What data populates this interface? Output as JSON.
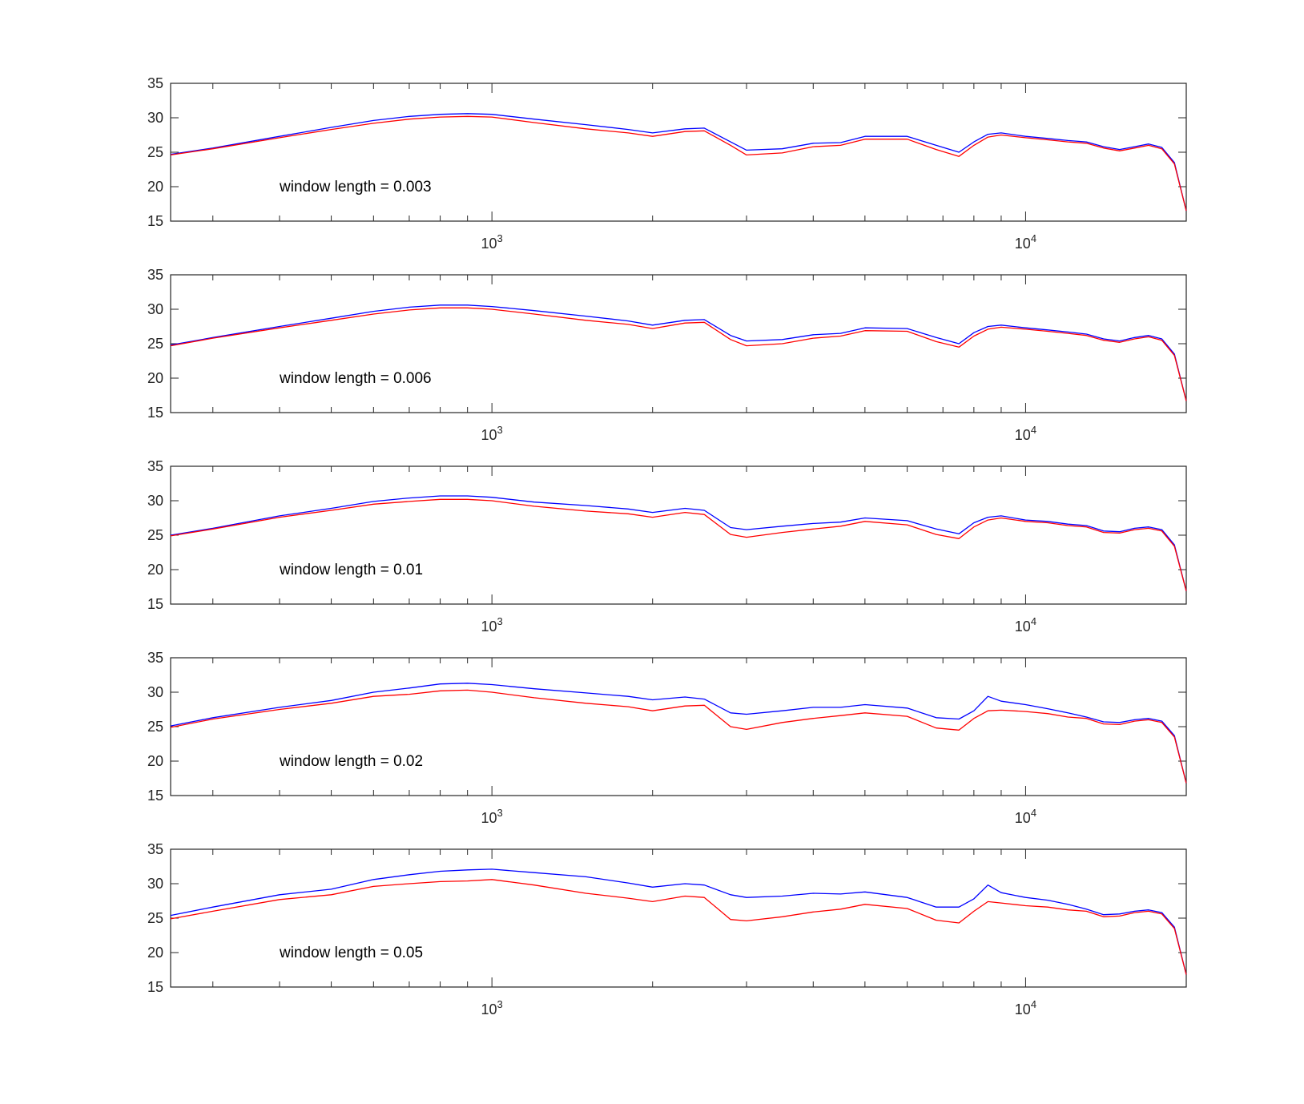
{
  "chart_data": [
    {
      "type": "line",
      "annotation": "window length = 0.003",
      "xscale": "log",
      "xlim": [
        250,
        20000
      ],
      "ylim": [
        15,
        35
      ],
      "yticks": [
        15,
        20,
        25,
        30,
        35
      ],
      "xtick_labels": [
        {
          "base": "10",
          "exp": "3"
        },
        {
          "base": "10",
          "exp": "4"
        }
      ],
      "grid": false,
      "legend": "none",
      "series": [
        {
          "color": "#0000ff",
          "x": [
            250,
            300,
            400,
            500,
            600,
            700,
            800,
            900,
            1000,
            1200,
            1500,
            1800,
            2000,
            2300,
            2500,
            2800,
            3000,
            3500,
            4000,
            4500,
            5000,
            6000,
            6800,
            7500,
            8000,
            8500,
            9000,
            10000,
            11000,
            12000,
            13000,
            14000,
            15000,
            16000,
            17000,
            18000,
            19000,
            20000
          ],
          "y": [
            24.7,
            25.6,
            27.3,
            28.6,
            29.6,
            30.2,
            30.5,
            30.6,
            30.5,
            29.8,
            29.0,
            28.3,
            27.8,
            28.4,
            28.5,
            26.5,
            25.3,
            25.5,
            26.3,
            26.4,
            27.3,
            27.3,
            26.0,
            25.0,
            26.5,
            27.6,
            27.8,
            27.3,
            27.0,
            26.7,
            26.5,
            25.8,
            25.4,
            25.8,
            26.2,
            25.7,
            23.5,
            16.5
          ]
        },
        {
          "color": "#ff0000",
          "x": [
            250,
            300,
            400,
            500,
            600,
            700,
            800,
            900,
            1000,
            1200,
            1500,
            1800,
            2000,
            2300,
            2500,
            2800,
            3000,
            3500,
            4000,
            4500,
            5000,
            6000,
            6800,
            7500,
            8000,
            8500,
            9000,
            10000,
            11000,
            12000,
            13000,
            14000,
            15000,
            16000,
            17000,
            18000,
            19000,
            20000
          ],
          "y": [
            24.6,
            25.5,
            27.1,
            28.3,
            29.2,
            29.8,
            30.1,
            30.2,
            30.1,
            29.3,
            28.4,
            27.8,
            27.3,
            28.0,
            28.1,
            26.0,
            24.6,
            24.9,
            25.8,
            26.0,
            26.9,
            26.9,
            25.4,
            24.4,
            26.0,
            27.2,
            27.5,
            27.1,
            26.8,
            26.5,
            26.3,
            25.6,
            25.2,
            25.6,
            26.0,
            25.5,
            23.3,
            16.5
          ]
        }
      ]
    },
    {
      "type": "line",
      "annotation": "window length = 0.006",
      "xscale": "log",
      "xlim": [
        250,
        20000
      ],
      "ylim": [
        15,
        35
      ],
      "yticks": [
        15,
        20,
        25,
        30,
        35
      ],
      "xtick_labels": [
        {
          "base": "10",
          "exp": "3"
        },
        {
          "base": "10",
          "exp": "4"
        }
      ],
      "grid": false,
      "legend": "none",
      "series": [
        {
          "color": "#0000ff",
          "x": [
            250,
            300,
            400,
            500,
            600,
            700,
            800,
            900,
            1000,
            1200,
            1500,
            1800,
            2000,
            2300,
            2500,
            2800,
            3000,
            3500,
            4000,
            4500,
            5000,
            6000,
            6800,
            7500,
            8000,
            8500,
            9000,
            10000,
            11000,
            12000,
            13000,
            14000,
            15000,
            16000,
            17000,
            18000,
            19000,
            20000
          ],
          "y": [
            24.8,
            25.9,
            27.5,
            28.7,
            29.7,
            30.3,
            30.6,
            30.6,
            30.4,
            29.8,
            29.0,
            28.3,
            27.7,
            28.4,
            28.5,
            26.2,
            25.4,
            25.6,
            26.3,
            26.5,
            27.3,
            27.2,
            25.9,
            25.0,
            26.6,
            27.5,
            27.7,
            27.3,
            27.0,
            26.7,
            26.4,
            25.7,
            25.4,
            25.9,
            26.2,
            25.7,
            23.5,
            16.7
          ]
        },
        {
          "color": "#ff0000",
          "x": [
            250,
            300,
            400,
            500,
            600,
            700,
            800,
            900,
            1000,
            1200,
            1500,
            1800,
            2000,
            2300,
            2500,
            2800,
            3000,
            3500,
            4000,
            4500,
            5000,
            6000,
            6800,
            7500,
            8000,
            8500,
            9000,
            10000,
            11000,
            12000,
            13000,
            14000,
            15000,
            16000,
            17000,
            18000,
            19000,
            20000
          ],
          "y": [
            24.7,
            25.8,
            27.3,
            28.4,
            29.3,
            29.9,
            30.2,
            30.2,
            30.0,
            29.3,
            28.4,
            27.8,
            27.2,
            28.0,
            28.1,
            25.6,
            24.7,
            25.0,
            25.8,
            26.1,
            26.9,
            26.8,
            25.3,
            24.5,
            26.1,
            27.1,
            27.4,
            27.1,
            26.8,
            26.5,
            26.2,
            25.5,
            25.2,
            25.7,
            26.0,
            25.5,
            23.3,
            16.7
          ]
        }
      ]
    },
    {
      "type": "line",
      "annotation": "window length = 0.01",
      "xscale": "log",
      "xlim": [
        250,
        20000
      ],
      "ylim": [
        15,
        35
      ],
      "yticks": [
        15,
        20,
        25,
        30,
        35
      ],
      "xtick_labels": [
        {
          "base": "10",
          "exp": "3"
        },
        {
          "base": "10",
          "exp": "4"
        }
      ],
      "grid": false,
      "legend": "none",
      "series": [
        {
          "color": "#0000ff",
          "x": [
            250,
            300,
            400,
            500,
            600,
            700,
            800,
            900,
            1000,
            1200,
            1500,
            1800,
            2000,
            2300,
            2500,
            2800,
            3000,
            3500,
            4000,
            4500,
            5000,
            6000,
            6800,
            7500,
            8000,
            8500,
            9000,
            10000,
            11000,
            12000,
            13000,
            14000,
            15000,
            16000,
            17000,
            18000,
            19000,
            20000
          ],
          "y": [
            25.0,
            26.0,
            27.8,
            28.9,
            29.9,
            30.4,
            30.7,
            30.7,
            30.5,
            29.8,
            29.3,
            28.8,
            28.3,
            28.9,
            28.6,
            26.1,
            25.8,
            26.3,
            26.7,
            26.9,
            27.5,
            27.1,
            25.9,
            25.2,
            26.8,
            27.6,
            27.8,
            27.2,
            27.0,
            26.6,
            26.4,
            25.6,
            25.5,
            26.0,
            26.2,
            25.8,
            23.6,
            16.9
          ]
        },
        {
          "color": "#ff0000",
          "x": [
            250,
            300,
            400,
            500,
            600,
            700,
            800,
            900,
            1000,
            1200,
            1500,
            1800,
            2000,
            2300,
            2500,
            2800,
            3000,
            3500,
            4000,
            4500,
            5000,
            6000,
            6800,
            7500,
            8000,
            8500,
            9000,
            10000,
            11000,
            12000,
            13000,
            14000,
            15000,
            16000,
            17000,
            18000,
            19000,
            20000
          ],
          "y": [
            24.9,
            25.9,
            27.6,
            28.6,
            29.5,
            29.9,
            30.2,
            30.2,
            30.0,
            29.2,
            28.5,
            28.1,
            27.6,
            28.3,
            28.0,
            25.1,
            24.7,
            25.4,
            25.9,
            26.3,
            27.0,
            26.5,
            25.1,
            24.5,
            26.2,
            27.2,
            27.5,
            27.0,
            26.8,
            26.4,
            26.2,
            25.4,
            25.3,
            25.8,
            26.0,
            25.6,
            23.4,
            16.9
          ]
        }
      ]
    },
    {
      "type": "line",
      "annotation": "window length = 0.02",
      "xscale": "log",
      "xlim": [
        250,
        20000
      ],
      "ylim": [
        15,
        35
      ],
      "yticks": [
        15,
        20,
        25,
        30,
        35
      ],
      "xtick_labels": [
        {
          "base": "10",
          "exp": "3"
        },
        {
          "base": "10",
          "exp": "4"
        }
      ],
      "grid": false,
      "legend": "none",
      "series": [
        {
          "color": "#0000ff",
          "x": [
            250,
            300,
            400,
            500,
            600,
            700,
            800,
            900,
            1000,
            1200,
            1500,
            1800,
            2000,
            2300,
            2500,
            2800,
            3000,
            3500,
            4000,
            4500,
            5000,
            6000,
            6800,
            7500,
            8000,
            8500,
            9000,
            10000,
            11000,
            12000,
            13000,
            14000,
            15000,
            16000,
            17000,
            18000,
            19000,
            20000
          ],
          "y": [
            25.1,
            26.3,
            27.8,
            28.8,
            30.0,
            30.6,
            31.2,
            31.3,
            31.1,
            30.5,
            29.9,
            29.4,
            28.9,
            29.3,
            29.0,
            27.0,
            26.8,
            27.3,
            27.8,
            27.8,
            28.2,
            27.7,
            26.3,
            26.1,
            27.3,
            29.4,
            28.7,
            28.2,
            27.6,
            27.0,
            26.4,
            25.7,
            25.6,
            26.0,
            26.2,
            25.8,
            23.7,
            16.8
          ]
        },
        {
          "color": "#ff0000",
          "x": [
            250,
            300,
            400,
            500,
            600,
            700,
            800,
            900,
            1000,
            1200,
            1500,
            1800,
            2000,
            2300,
            2500,
            2800,
            3000,
            3500,
            4000,
            4500,
            5000,
            6000,
            6800,
            7500,
            8000,
            8500,
            9000,
            10000,
            11000,
            12000,
            13000,
            14000,
            15000,
            16000,
            17000,
            18000,
            19000,
            20000
          ],
          "y": [
            24.9,
            26.1,
            27.5,
            28.4,
            29.4,
            29.7,
            30.2,
            30.3,
            30.0,
            29.2,
            28.4,
            27.9,
            27.3,
            28.0,
            28.1,
            25.0,
            24.6,
            25.6,
            26.2,
            26.6,
            27.0,
            26.5,
            24.8,
            24.5,
            26.2,
            27.3,
            27.4,
            27.2,
            26.9,
            26.4,
            26.2,
            25.4,
            25.3,
            25.8,
            26.0,
            25.6,
            23.5,
            16.8
          ]
        }
      ]
    },
    {
      "type": "line",
      "annotation": "window length = 0.05",
      "xscale": "log",
      "xlim": [
        250,
        20000
      ],
      "ylim": [
        15,
        35
      ],
      "yticks": [
        15,
        20,
        25,
        30,
        35
      ],
      "xtick_labels": [
        {
          "base": "10",
          "exp": "3"
        },
        {
          "base": "10",
          "exp": "4"
        }
      ],
      "grid": false,
      "legend": "none",
      "series": [
        {
          "color": "#0000ff",
          "x": [
            250,
            300,
            400,
            500,
            600,
            700,
            800,
            900,
            1000,
            1200,
            1500,
            1800,
            2000,
            2300,
            2500,
            2800,
            3000,
            3500,
            4000,
            4500,
            5000,
            6000,
            6800,
            7500,
            8000,
            8500,
            9000,
            10000,
            11000,
            12000,
            13000,
            14000,
            15000,
            16000,
            17000,
            18000,
            19000,
            20000
          ],
          "y": [
            25.4,
            26.6,
            28.4,
            29.2,
            30.6,
            31.3,
            31.8,
            32.0,
            32.1,
            31.6,
            31.0,
            30.1,
            29.5,
            30.0,
            29.8,
            28.4,
            28.0,
            28.2,
            28.6,
            28.5,
            28.8,
            28.0,
            26.6,
            26.6,
            27.8,
            29.8,
            28.7,
            28.0,
            27.6,
            27.0,
            26.3,
            25.5,
            25.6,
            26.0,
            26.2,
            25.8,
            23.7,
            16.8
          ]
        },
        {
          "color": "#ff0000",
          "x": [
            250,
            300,
            400,
            500,
            600,
            700,
            800,
            900,
            1000,
            1200,
            1500,
            1800,
            2000,
            2300,
            2500,
            2800,
            3000,
            3500,
            4000,
            4500,
            5000,
            6000,
            6800,
            7500,
            8000,
            8500,
            9000,
            10000,
            11000,
            12000,
            13000,
            14000,
            15000,
            16000,
            17000,
            18000,
            19000,
            20000
          ],
          "y": [
            24.9,
            26.0,
            27.7,
            28.4,
            29.6,
            30.0,
            30.3,
            30.4,
            30.6,
            29.8,
            28.6,
            27.9,
            27.4,
            28.2,
            28.0,
            24.8,
            24.6,
            25.2,
            25.9,
            26.3,
            27.0,
            26.4,
            24.7,
            24.3,
            26.0,
            27.4,
            27.2,
            26.8,
            26.6,
            26.2,
            26.0,
            25.2,
            25.3,
            25.8,
            26.0,
            25.6,
            23.5,
            16.8
          ]
        }
      ]
    }
  ]
}
